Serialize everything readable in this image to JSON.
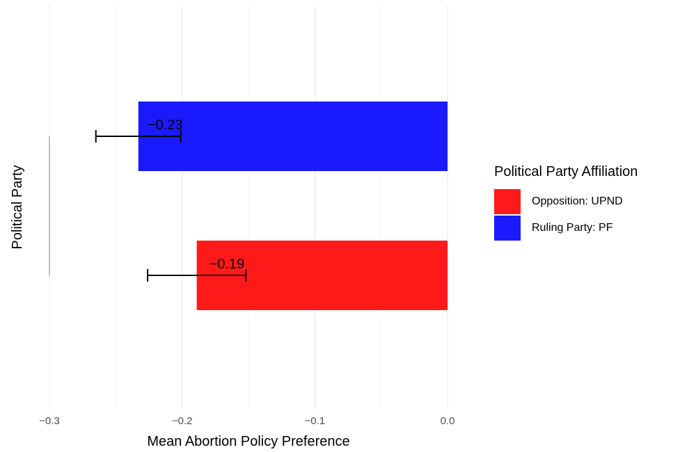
{
  "chart_data": {
    "type": "bar",
    "orientation": "horizontal",
    "xlabel": "Mean Abortion Policy Preference",
    "ylabel": "Political Party",
    "xlim": [
      -0.3,
      0.0
    ],
    "x_ticks": [
      -0.3,
      -0.2,
      -0.1,
      0.0
    ],
    "x_tick_labels": [
      "−0.3",
      "−0.2",
      "−0.1",
      "0.0"
    ],
    "grid": true,
    "bars": [
      {
        "party": "Ruling Party: PF",
        "value": -0.233,
        "error_low": -0.265,
        "error_high": -0.201,
        "label": "−0.23",
        "color": "#1a1aff"
      },
      {
        "party": "Opposition: UPND",
        "value": -0.189,
        "error_low": -0.226,
        "error_high": -0.152,
        "label": "−0.19",
        "color": "#ff1a1a"
      }
    ],
    "legend": {
      "title": "Political Party Affiliation",
      "placement": "right",
      "entries": [
        {
          "label": "Opposition: UPND",
          "color": "#ff1a1a"
        },
        {
          "label": "Ruling Party: PF",
          "color": "#1a1aff"
        }
      ]
    }
  }
}
